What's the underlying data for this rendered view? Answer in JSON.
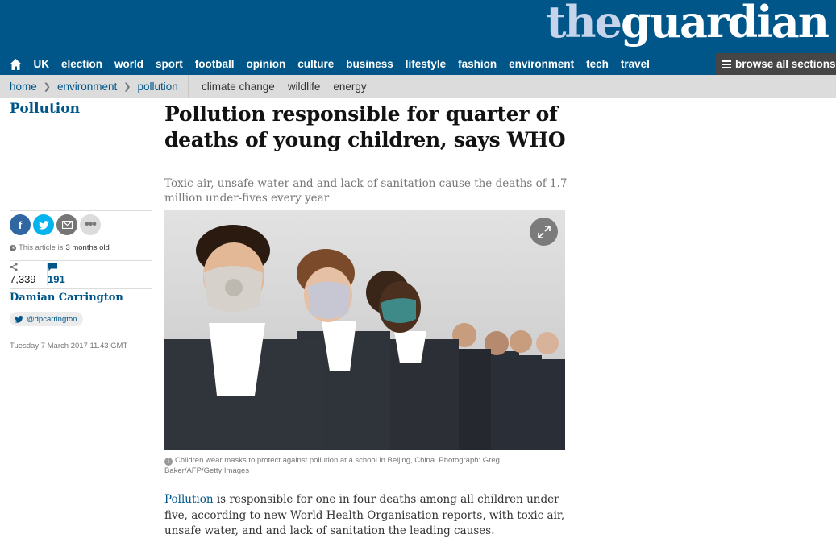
{
  "masthead": {
    "logo_the": "the",
    "logo_guardian": "guardian"
  },
  "nav": {
    "items": [
      "UK",
      "election",
      "world",
      "sport",
      "football",
      "opinion",
      "culture",
      "business",
      "lifestyle",
      "fashion",
      "environment",
      "tech",
      "travel"
    ],
    "browse_label": "browse all sections"
  },
  "subnav": {
    "breadcrumbs": [
      "home",
      "environment",
      "pollution"
    ],
    "related": [
      "climate change",
      "wildlife",
      "energy"
    ]
  },
  "article": {
    "section": "Pollution",
    "headline": "Pollution responsible for quarter of deaths of young children, says WHO",
    "standfirst": "Toxic air, unsafe water and and lack of sanitation cause the deaths of 1.7 million under-fives every year",
    "age_prefix": "This article is",
    "age_value": "3 months old",
    "shares": "7,339",
    "comments": "191",
    "author": "Damian Carrington",
    "twitter_handle": "@dpcarrington",
    "date": "Tuesday 7 March 2017 11.43 GMT",
    "caption": "Children wear masks to protect against pollution at a school in Beijing, China. Photograph: Greg Baker/AFP/Getty Images",
    "body_link": "Pollution",
    "body_rest": " is responsible for one in four deaths among all children under five, according to new World Health Organisation reports, with toxic air, unsafe water, and and lack of sanitation the leading causes."
  },
  "icons": [
    "home-icon",
    "menu-icon",
    "facebook-icon",
    "twitter-icon",
    "email-icon",
    "more-icon",
    "clock-icon",
    "share-icon",
    "comment-icon",
    "expand-icon",
    "info-icon"
  ],
  "colors": {
    "brand_blue": "#005689",
    "facebook": "#3067a3",
    "twitter": "#03b3ee",
    "email": "#767676",
    "more": "#dcdcdc",
    "browse_bg": "#464646",
    "subnav_bg": "#dcdcdc"
  }
}
